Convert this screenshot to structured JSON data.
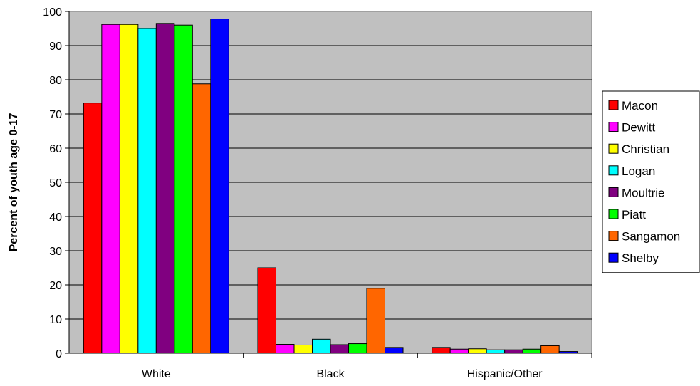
{
  "chart_data": {
    "type": "bar",
    "title": "",
    "xlabel": "",
    "ylabel": "Percent of youth age 0-17",
    "ylim": [
      0,
      100
    ],
    "yticks": [
      0,
      10,
      20,
      30,
      40,
      50,
      60,
      70,
      80,
      90,
      100
    ],
    "grid": true,
    "legend": "right",
    "categories": [
      "White",
      "Black",
      "Hispanic/Other"
    ],
    "series": [
      {
        "name": "Macon",
        "color": "#ff0000",
        "values": [
          73.2,
          25.0,
          1.7
        ]
      },
      {
        "name": "Dewitt",
        "color": "#ff00ff",
        "values": [
          96.2,
          2.6,
          1.2
        ]
      },
      {
        "name": "Christian",
        "color": "#ffff00",
        "values": [
          96.2,
          2.4,
          1.3
        ]
      },
      {
        "name": "Logan",
        "color": "#00ffff",
        "values": [
          95.0,
          4.1,
          1.0
        ]
      },
      {
        "name": "Moultrie",
        "color": "#800080",
        "values": [
          96.5,
          2.5,
          1.0
        ]
      },
      {
        "name": "Piatt",
        "color": "#00ff00",
        "values": [
          96.0,
          2.8,
          1.2
        ]
      },
      {
        "name": "Sangamon",
        "color": "#ff6600",
        "values": [
          78.8,
          19.0,
          2.2
        ]
      },
      {
        "name": "Shelby",
        "color": "#0000ff",
        "values": [
          97.8,
          1.7,
          0.5
        ]
      }
    ],
    "plot_background": "#c0c0c0"
  }
}
